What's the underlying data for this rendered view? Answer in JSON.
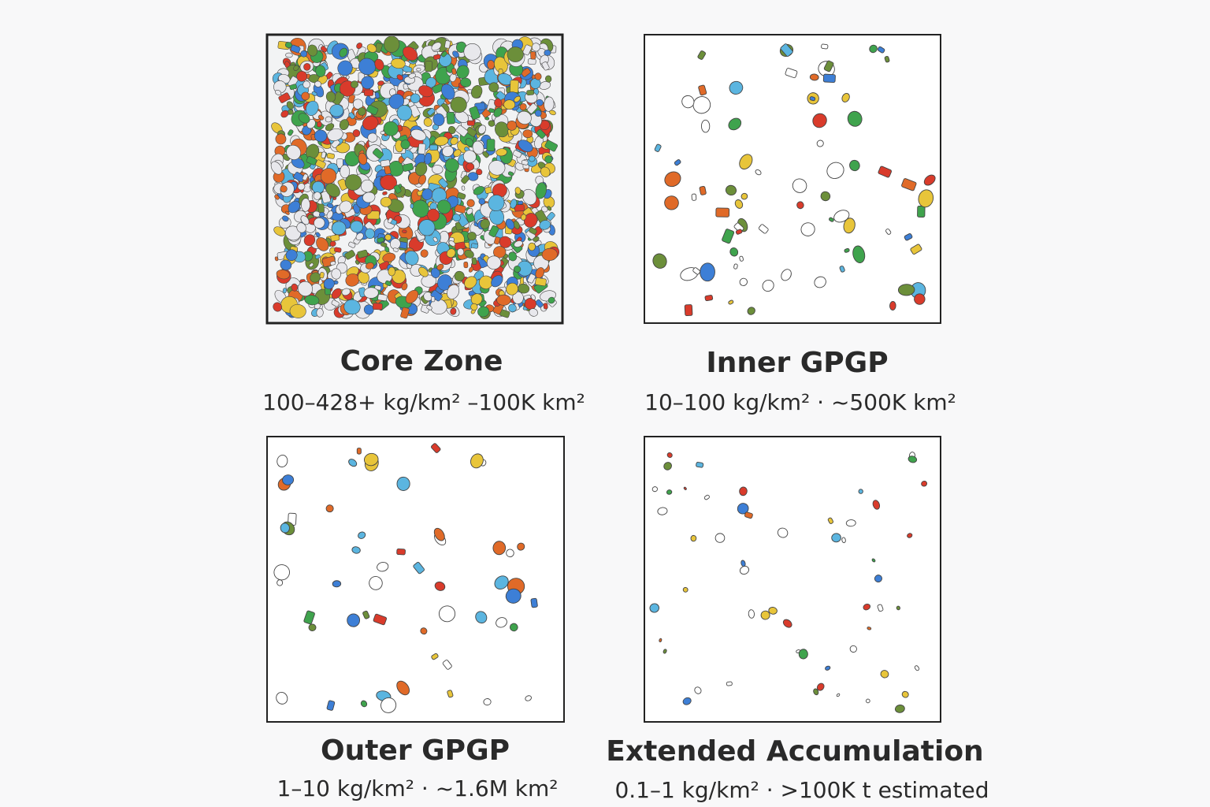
{
  "panels": [
    {
      "title": "Core Zone",
      "subtitle": "100–428+ kg/km² –100K km²"
    },
    {
      "title": "Inner GPGP",
      "subtitle": "10–100 kg/km²  ·  ~500K km²"
    },
    {
      "title": "Outer GPGP",
      "subtitle": "1–10 kg/km²  ·  ~1.6M km²"
    },
    {
      "title": "Extended Accumulation",
      "subtitle": "0.1–1 kg/km² · >100K t estimated"
    }
  ]
}
